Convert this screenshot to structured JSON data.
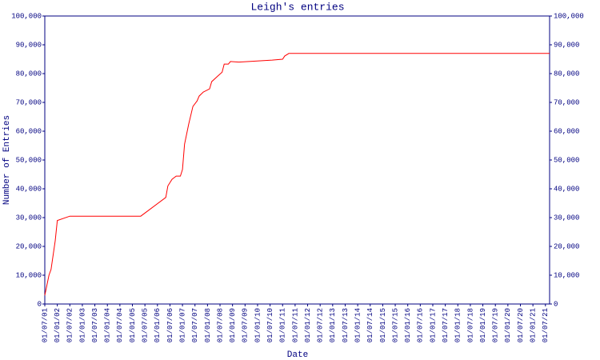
{
  "chart_data": {
    "type": "line",
    "title": "Leigh's entries",
    "x_label": "Date",
    "y_label": "Number of Entries",
    "x": [
      "01/07/01",
      "01/09/01",
      "01/10/01",
      "01/12/01",
      "01/01/02",
      "01/07/02",
      "01/05/05",
      "01/05/06",
      "01/06/06",
      "01/08/06",
      "01/10/06",
      "01/12/06",
      "01/01/07",
      "01/02/07",
      "01/04/07",
      "01/06/07",
      "01/08/07",
      "01/09/07",
      "01/11/07",
      "01/02/08",
      "01/03/08",
      "01/06/08",
      "01/08/08",
      "01/09/08",
      "01/11/08",
      "01/12/08",
      "01/04/09",
      "01/08/10",
      "01/01/11",
      "01/02/11",
      "01/04/11",
      "01/09/21"
    ],
    "series": [
      {
        "color": "#ff0000",
        "values": [
          3000,
          10000,
          12000,
          22000,
          29000,
          30500,
          30500,
          37000,
          41000,
          43300,
          44400,
          44400,
          46700,
          55500,
          62500,
          68600,
          70500,
          72200,
          73600,
          74700,
          77200,
          79200,
          80500,
          83300,
          83300,
          84200,
          84000,
          84700,
          85000,
          86100,
          87000,
          87000
        ]
      }
    ],
    "xlim": [
      "01/07/01",
      "01/09/21"
    ],
    "xticks": [
      "01/07/01",
      "01/01/02",
      "01/07/02",
      "01/01/03",
      "01/07/03",
      "01/01/04",
      "01/07/04",
      "01/01/05",
      "01/07/05",
      "01/01/06",
      "01/07/06",
      "01/01/07",
      "01/07/07",
      "01/01/08",
      "01/07/08",
      "01/01/09",
      "01/07/09",
      "01/01/10",
      "01/07/10",
      "01/01/11",
      "01/07/11",
      "01/01/12",
      "01/07/12",
      "01/01/13",
      "01/07/13",
      "01/01/14",
      "01/07/14",
      "01/01/15",
      "01/07/15",
      "01/01/16",
      "01/07/16",
      "01/01/17",
      "01/07/17",
      "01/01/18",
      "01/07/18",
      "01/01/19",
      "01/07/19",
      "01/01/20",
      "01/07/20",
      "01/01/21",
      "01/07/21"
    ],
    "ylim": [
      0,
      100000
    ],
    "yticks": [
      0,
      {
        "value": 10000,
        "label": "10,000"
      },
      {
        "value": 20000,
        "label": "20,000"
      },
      {
        "value": 30000,
        "label": "30,000"
      },
      {
        "value": 40000,
        "label": "40,000"
      },
      {
        "value": 50000,
        "label": "50,000"
      },
      {
        "value": 60000,
        "label": "60,000"
      },
      {
        "value": 70000,
        "label": "70,000"
      },
      {
        "value": 80000,
        "label": "80,000"
      },
      {
        "value": 90000,
        "label": "90,000"
      },
      {
        "value": 100000,
        "label": "100,000"
      }
    ],
    "y2lim": [
      0,
      100000
    ],
    "y2ticks": [
      0,
      {
        "value": 10000,
        "label": "10,000"
      },
      {
        "value": 20000,
        "label": "20,000"
      },
      {
        "value": 30000,
        "label": "30,000"
      },
      {
        "value": 40000,
        "label": "40,000"
      },
      {
        "value": 50000,
        "label": "50,000"
      },
      {
        "value": 60000,
        "label": "60,000"
      },
      {
        "value": 70000,
        "label": "70,000"
      },
      {
        "value": 80000,
        "label": "80,000"
      },
      {
        "value": 90000,
        "label": "90,000"
      },
      {
        "value": 100000,
        "label": "100,000"
      }
    ]
  }
}
